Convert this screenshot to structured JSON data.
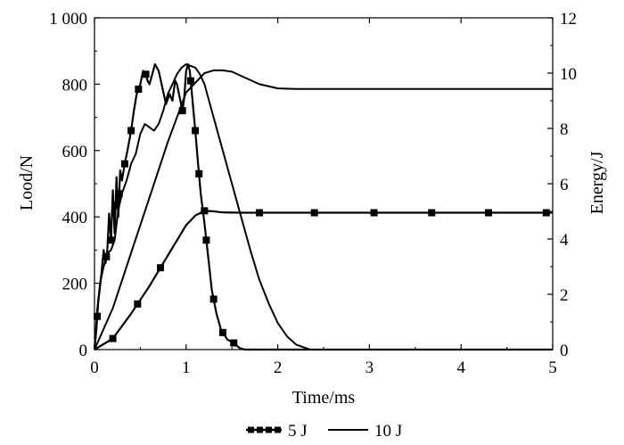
{
  "chart_data": {
    "type": "line",
    "title": "",
    "xlabel": "Time/ms",
    "ylabel_left": "Lood/N",
    "ylabel_right": "Energy/J",
    "xlim": [
      0,
      5
    ],
    "ylim_left": [
      0,
      1000
    ],
    "ylim_right": [
      0,
      12
    ],
    "grid": false,
    "legend_position": "bottom-center",
    "x_ticks": [
      {
        "value": 0,
        "label": "0"
      },
      {
        "value": 1,
        "label": "1"
      },
      {
        "value": 2,
        "label": "2"
      },
      {
        "value": 3,
        "label": "3"
      },
      {
        "value": 4,
        "label": "4"
      },
      {
        "value": 5,
        "label": "5"
      }
    ],
    "y_left_ticks": [
      {
        "value": 0,
        "label": "0"
      },
      {
        "value": 200,
        "label": "200"
      },
      {
        "value": 400,
        "label": "400"
      },
      {
        "value": 600,
        "label": "600"
      },
      {
        "value": 800,
        "label": "800"
      },
      {
        "value": 1000,
        "label": "1 000"
      }
    ],
    "y_right_ticks": [
      {
        "value": 0,
        "label": "0"
      },
      {
        "value": 2,
        "label": "2"
      },
      {
        "value": 4,
        "label": "4"
      },
      {
        "value": 6,
        "label": "6"
      },
      {
        "value": 8,
        "label": "8"
      },
      {
        "value": 10,
        "label": "10"
      },
      {
        "value": 12,
        "label": "12"
      }
    ],
    "legend": [
      {
        "name": "5 J",
        "style": "line-square-markers"
      },
      {
        "name": "10 J",
        "style": "line"
      }
    ],
    "series": [
      {
        "name": "5 J load",
        "legend": "5 J",
        "axis": "left",
        "markers": true,
        "x": [
          0,
          0.02,
          0.04,
          0.06,
          0.08,
          0.1,
          0.12,
          0.14,
          0.16,
          0.18,
          0.2,
          0.22,
          0.24,
          0.26,
          0.28,
          0.3,
          0.33,
          0.36,
          0.4,
          0.43,
          0.46,
          0.5,
          0.53,
          0.56,
          0.58,
          0.6,
          0.63,
          0.66,
          0.7,
          0.74,
          0.78,
          0.82,
          0.85,
          0.88,
          0.9,
          0.93,
          0.96,
          0.98,
          1.0,
          1.02,
          1.04,
          1.06,
          1.08,
          1.1,
          1.13,
          1.16,
          1.2,
          1.24,
          1.28,
          1.33,
          1.38,
          1.45,
          1.52,
          1.58,
          1.64,
          1.7,
          2.0,
          2.5,
          3.0,
          3.5,
          4.0,
          4.5,
          5.0
        ],
        "y": [
          0,
          60,
          140,
          190,
          240,
          300,
          260,
          300,
          410,
          330,
          480,
          350,
          520,
          400,
          540,
          510,
          560,
          600,
          660,
          720,
          770,
          800,
          840,
          830,
          810,
          800,
          830,
          860,
          840,
          790,
          740,
          770,
          750,
          810,
          800,
          760,
          720,
          760,
          840,
          860,
          840,
          780,
          720,
          660,
          560,
          470,
          380,
          280,
          180,
          110,
          60,
          30,
          20,
          5,
          0,
          0,
          0,
          0,
          0,
          0,
          0,
          0,
          0
        ],
        "marker_x": [
          0.03,
          0.13,
          0.18,
          0.23,
          0.27,
          0.33,
          0.4,
          0.48,
          0.56,
          0.96,
          1.05,
          1.1,
          1.14,
          1.22,
          1.3,
          1.4,
          1.52
        ]
      },
      {
        "name": "5 J energy",
        "legend": "5 J",
        "axis": "right",
        "markers": true,
        "x": [
          0,
          0.2,
          0.4,
          0.6,
          0.8,
          1.0,
          1.1,
          1.2,
          1.3,
          1.4,
          1.6,
          1.8,
          2.0,
          2.5,
          3.0,
          3.5,
          4.0,
          4.5,
          5.0
        ],
        "y": [
          0,
          0.4,
          1.3,
          2.3,
          3.4,
          4.5,
          4.85,
          5.02,
          5.0,
          4.96,
          4.95,
          4.95,
          4.95,
          4.95,
          4.95,
          4.95,
          4.95,
          4.95,
          4.95
        ],
        "marker_x": [
          0.2,
          0.47,
          0.72,
          1.2,
          1.8,
          2.4,
          3.05,
          3.68,
          4.3,
          4.93
        ]
      },
      {
        "name": "10 J load",
        "legend": "10 J",
        "axis": "left",
        "markers": false,
        "x": [
          0,
          0.03,
          0.06,
          0.1,
          0.14,
          0.18,
          0.22,
          0.26,
          0.3,
          0.35,
          0.4,
          0.45,
          0.5,
          0.55,
          0.6,
          0.65,
          0.7,
          0.75,
          0.8,
          0.85,
          0.9,
          0.95,
          1.0,
          1.05,
          1.1,
          1.15,
          1.2,
          1.3,
          1.4,
          1.5,
          1.6,
          1.7,
          1.8,
          1.9,
          2.0,
          2.1,
          2.2,
          2.3,
          2.35,
          2.5,
          3.0,
          3.5,
          4.0,
          4.5,
          5.0
        ],
        "y": [
          0,
          120,
          200,
          250,
          290,
          300,
          330,
          420,
          470,
          510,
          560,
          590,
          650,
          680,
          670,
          660,
          680,
          720,
          770,
          800,
          830,
          850,
          860,
          855,
          850,
          830,
          800,
          700,
          600,
          500,
          400,
          300,
          210,
          140,
          80,
          40,
          15,
          5,
          0,
          0,
          0,
          0,
          0,
          0,
          0
        ]
      },
      {
        "name": "10 J energy",
        "legend": "10 J",
        "axis": "right",
        "markers": false,
        "x": [
          0,
          0.2,
          0.4,
          0.6,
          0.8,
          1.0,
          1.2,
          1.3,
          1.4,
          1.5,
          1.6,
          1.8,
          2.0,
          2.2,
          2.5,
          3.0,
          3.5,
          4.0,
          4.5,
          5.0
        ],
        "y": [
          0,
          1.5,
          3.5,
          5.5,
          7.5,
          9.3,
          10.0,
          10.1,
          10.1,
          10.05,
          9.9,
          9.6,
          9.45,
          9.43,
          9.43,
          9.43,
          9.43,
          9.43,
          9.43,
          9.43
        ]
      }
    ]
  }
}
